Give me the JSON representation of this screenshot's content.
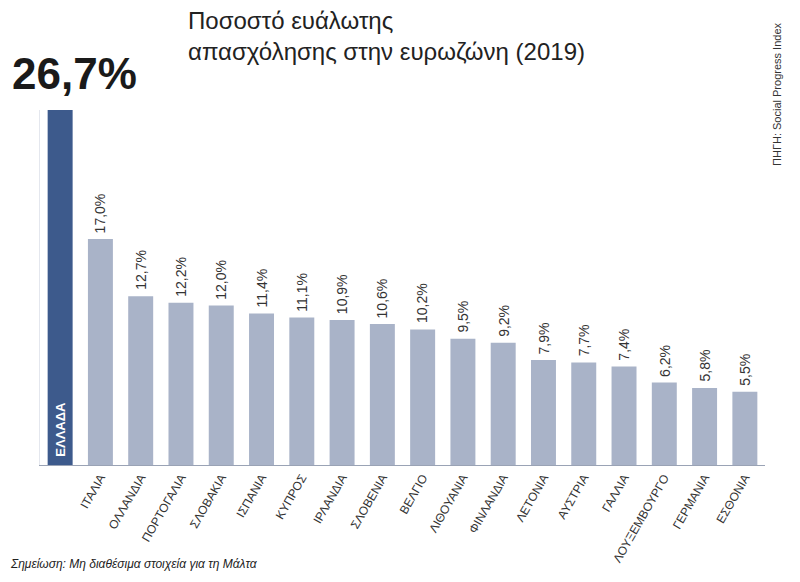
{
  "chart_data": {
    "type": "bar",
    "title": "Ποσοστό ευάλωτης απασχόλησης στην ευρωζώνη (2019)",
    "categories": [
      "ΕΛΛΑΔΑ",
      "ΙΤΑΛΙΑ",
      "ΟΛΛΑΝΔΙΑ",
      "ΠΟΡΤΟΓΑΛΙΑ",
      "ΣΛΟΒΑΚΙΑ",
      "ΙΣΠΑΝΙΑ",
      "ΚΥΠΡΟΣ",
      "ΙΡΛΑΝΔΙΑ",
      "ΣΛΟΒΕΝΙΑ",
      "ΒΕΛΓΙΟ",
      "ΛΙΘΟΥΑΝΙΑ",
      "ΦΙΝΛΑΝΔΙΑ",
      "ΛΕΤΟΝΙΑ",
      "ΑΥΣΤΡΙΑ",
      "ΓΑΛΛΙΑ",
      "ΛΟΥΞΕΜΒΟΥΡΓΟ",
      "ΓΕΡΜΑΝΙΑ",
      "ΕΣΘΟΝΙΑ"
    ],
    "values": [
      26.7,
      17.0,
      12.7,
      12.2,
      12.0,
      11.4,
      11.1,
      10.9,
      10.6,
      10.2,
      9.5,
      9.2,
      7.9,
      7.7,
      7.4,
      6.2,
      5.8,
      5.5
    ],
    "value_labels": [
      "26,7%",
      "17,0%",
      "12,7%",
      "12,2%",
      "12,0%",
      "11,4%",
      "11,1%",
      "10,9%",
      "10,6%",
      "10,2%",
      "9,5%",
      "9,2%",
      "7,9%",
      "7,7%",
      "7,4%",
      "6,2%",
      "5,8%",
      "5,5%"
    ],
    "colors": [
      "#3d5a8c",
      "#a9b3c8",
      "#a9b3c8",
      "#a9b3c8",
      "#a9b3c8",
      "#a9b3c8",
      "#a9b3c8",
      "#a9b3c8",
      "#a9b3c8",
      "#a9b3c8",
      "#a9b3c8",
      "#a9b3c8",
      "#a9b3c8",
      "#a9b3c8",
      "#a9b3c8",
      "#a9b3c8",
      "#a9b3c8",
      "#a9b3c8"
    ],
    "ylim": [
      0,
      26.7
    ],
    "grid": false,
    "data_labels": true,
    "tick_labels": "x",
    "source": "ΠΗΓΗ: Social Progress Index",
    "note": "Σημείωση: Μη διαθέσιμα στοιχεία για τη Μάλτα"
  }
}
